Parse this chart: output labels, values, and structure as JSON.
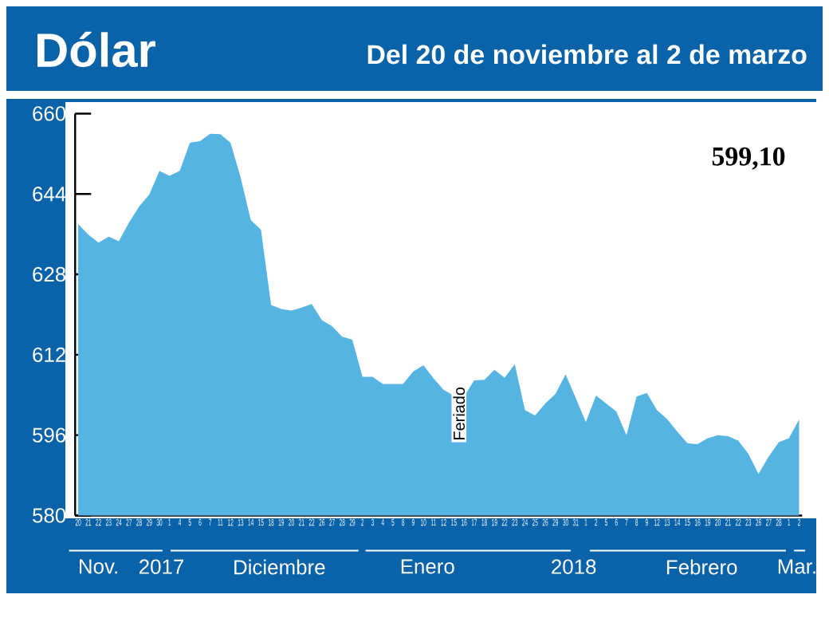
{
  "chart_data": {
    "type": "area",
    "title": "Dólar",
    "subtitle": "Del 20 de noviembre al 2 de marzo",
    "categories": [
      "20",
      "21",
      "22",
      "23",
      "24",
      "27",
      "28",
      "29",
      "30",
      "1",
      "4",
      "5",
      "6",
      "7",
      "11",
      "12",
      "13",
      "14",
      "15",
      "18",
      "19",
      "20",
      "21",
      "22",
      "26",
      "27",
      "28",
      "29",
      "2",
      "3",
      "4",
      "5",
      "8",
      "9",
      "10",
      "11",
      "12",
      "15",
      "16",
      "17",
      "18",
      "19",
      "22",
      "23",
      "24",
      "25",
      "26",
      "29",
      "30",
      "31",
      "1",
      "2",
      "5",
      "6",
      "7",
      "8",
      "9",
      "12",
      "13",
      "14",
      "15",
      "16",
      "19",
      "20",
      "21",
      "22",
      "23",
      "26",
      "27",
      "28",
      "1",
      "2"
    ],
    "values": [
      638.0,
      635.9,
      634.3,
      635.5,
      634.6,
      638.3,
      641.5,
      643.9,
      648.6,
      647.6,
      648.6,
      654.2,
      654.5,
      656.0,
      655.9,
      654.2,
      647.3,
      638.8,
      636.9,
      621.9,
      621.1,
      620.8,
      621.4,
      622.1,
      618.9,
      617.7,
      615.6,
      615.0,
      607.6,
      607.6,
      606.2,
      606.2,
      606.2,
      608.7,
      609.9,
      607.3,
      605.0,
      603.9,
      603.7,
      606.9,
      607.0,
      609.0,
      607.4,
      610.1,
      601.0,
      599.9,
      602.3,
      604.2,
      608.1,
      603.4,
      598.6,
      603.9,
      602.3,
      600.7,
      596.0,
      603.7,
      604.4,
      601.0,
      599.2,
      596.7,
      594.4,
      594.2,
      595.4,
      596.0,
      595.8,
      594.9,
      592.3,
      588.3,
      591.7,
      594.6,
      595.4,
      599.1
    ],
    "color": "#56b4e3",
    "ylim": [
      580,
      660
    ],
    "yticks": [
      580,
      596,
      612,
      628,
      644,
      660
    ],
    "annotations": [
      "599,10",
      "Feriado",
      "Nov.",
      "2017",
      "Diciembre",
      "Enero",
      "2018",
      "Febrero",
      "Mar."
    ]
  }
}
